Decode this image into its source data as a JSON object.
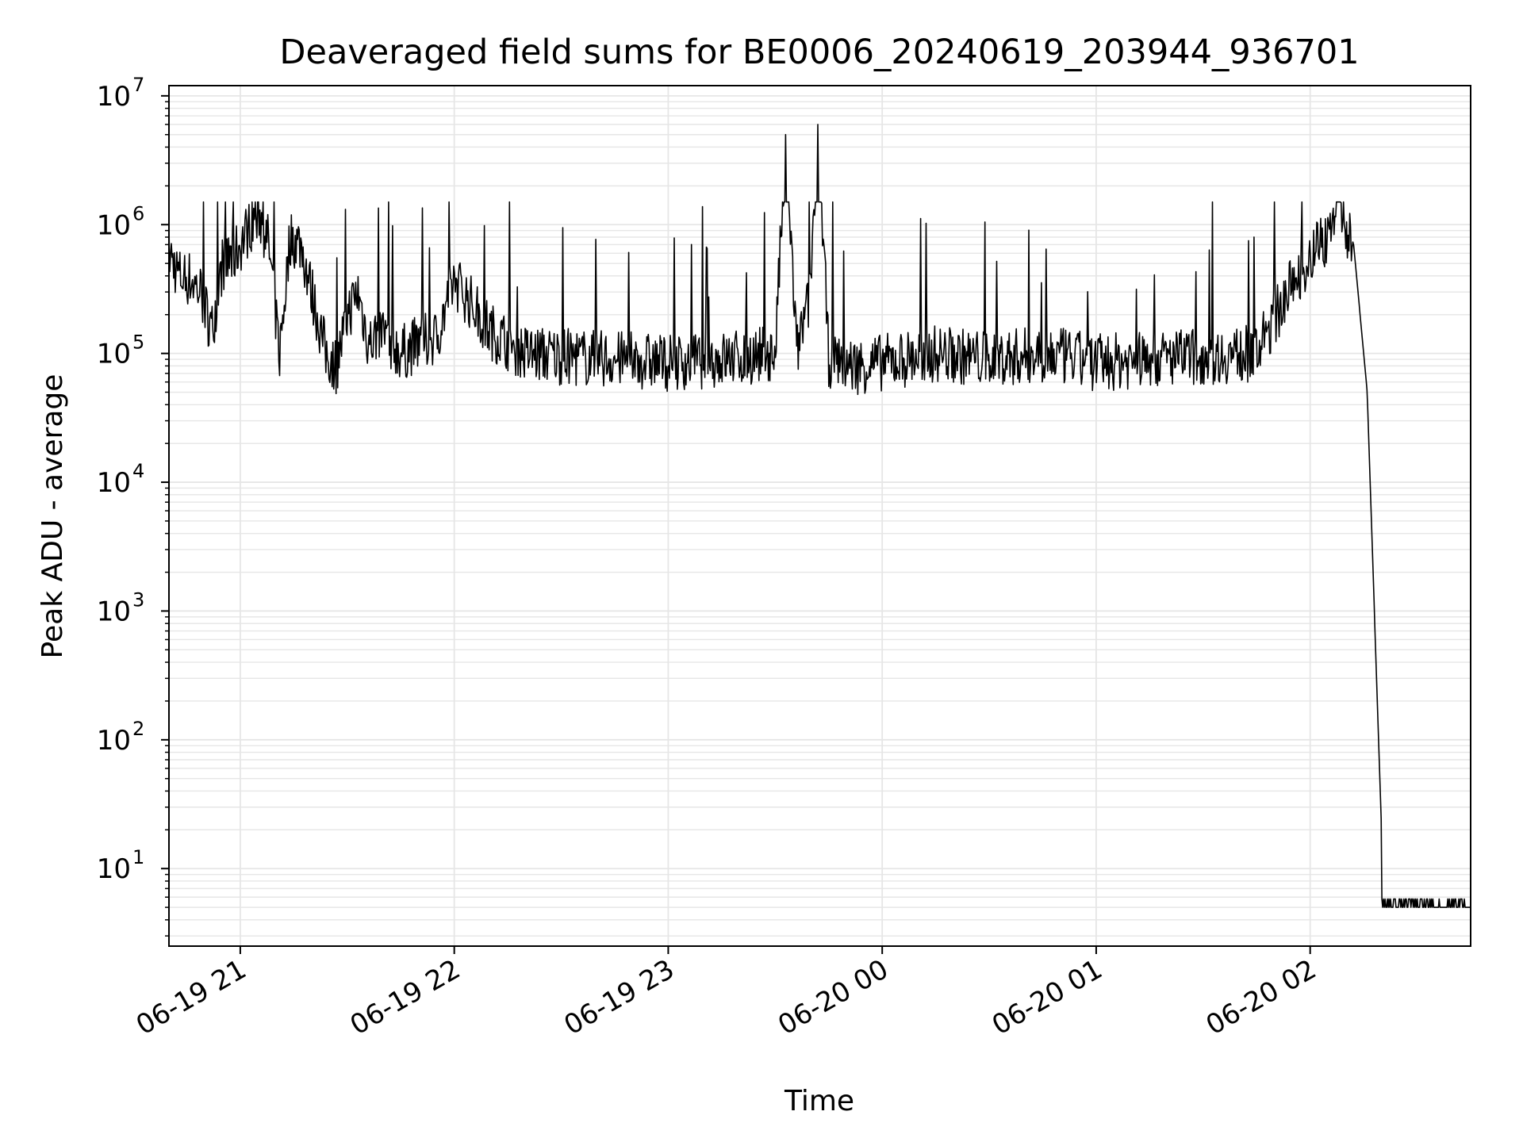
{
  "chart_data": {
    "type": "line",
    "title": "Deaveraged field sums for BE0006_20240619_203944_936701",
    "xlabel": "Time",
    "ylabel": "Peak ADU - average",
    "yscale": "log",
    "ylim": [
      2.5,
      12000000
    ],
    "xlim": [
      "06-19 20:40",
      "06-20 02:45"
    ],
    "x_ticks": [
      "06-19 21",
      "06-19 22",
      "06-19 23",
      "06-20 00",
      "06-20 01",
      "06-20 02"
    ],
    "y_ticks": [
      {
        "base": "10",
        "exp": "1"
      },
      {
        "base": "10",
        "exp": "2"
      },
      {
        "base": "10",
        "exp": "3"
      },
      {
        "base": "10",
        "exp": "4"
      },
      {
        "base": "10",
        "exp": "5"
      },
      {
        "base": "10",
        "exp": "6"
      },
      {
        "base": "10",
        "exp": "7"
      }
    ],
    "grid": true,
    "line_color": "#000000",
    "grid_color": "#e6e6e6",
    "series": [
      {
        "x": [
          "06-19 20:40",
          "06-19 20:43",
          "06-19 20:46",
          "06-19 20:49",
          "06-19 20:52",
          "06-19 20:55",
          "06-19 20:58",
          "06-19 21:02",
          "06-19 21:05",
          "06-19 21:08",
          "06-19 21:11",
          "06-19 21:14",
          "06-19 21:17",
          "06-19 21:20",
          "06-19 21:24",
          "06-19 21:27",
          "06-19 21:30",
          "06-19 21:33",
          "06-19 21:36",
          "06-19 21:40",
          "06-19 21:45",
          "06-19 21:50",
          "06-19 21:55",
          "06-19 22:00",
          "06-19 22:10",
          "06-19 22:20",
          "06-19 22:30",
          "06-19 22:45",
          "06-19 23:00",
          "06-19 23:15",
          "06-19 23:30",
          "06-19 23:33",
          "06-19 23:36",
          "06-19 23:40",
          "06-19 23:42",
          "06-19 23:45",
          "06-19 23:52",
          "06-20 00:00",
          "06-20 00:15",
          "06-20 00:30",
          "06-20 00:45",
          "06-20 01:00",
          "06-20 01:15",
          "06-20 01:30",
          "06-20 01:45",
          "06-20 01:55",
          "06-20 02:02",
          "06-20 02:05",
          "06-20 02:08",
          "06-20 02:10",
          "06-20 02:12",
          "06-20 02:14",
          "06-20 02:16",
          "06-20 02:18",
          "06-20 02:20",
          "06-20 02:25",
          "06-20 02:35",
          "06-20 02:45"
        ],
        "y": [
          600000,
          400000,
          380000,
          300000,
          150000,
          500000,
          550000,
          900000,
          1300000,
          700000,
          100000,
          800000,
          700000,
          300000,
          100000,
          80000,
          200000,
          300000,
          120000,
          150000,
          100000,
          120000,
          130000,
          380000,
          150000,
          100000,
          95000,
          90000,
          85000,
          90000,
          100000,
          5000000,
          100000,
          300000,
          6000000,
          90000,
          80000,
          85000,
          100000,
          90000,
          100000,
          85000,
          90000,
          95000,
          100000,
          350000,
          700000,
          800000,
          1900000,
          850000,
          800000,
          200000,
          50000,
          1000,
          20,
          5,
          5,
          5
        ]
      }
    ]
  }
}
